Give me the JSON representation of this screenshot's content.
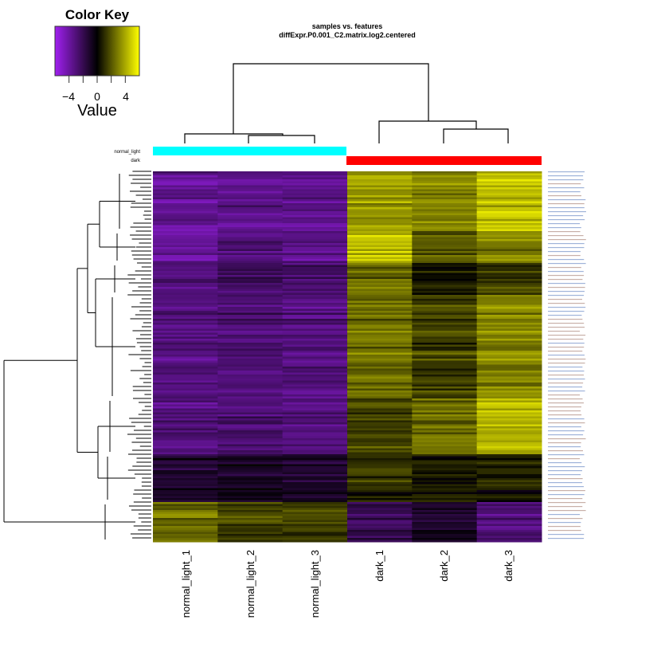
{
  "chart_data": {
    "type": "heatmap",
    "title": "samples vs. features",
    "subtitle": "diffExpr.P0.001_C2.matrix.log2.centered",
    "columns": [
      "normal_light_1",
      "normal_light_2",
      "normal_light_3",
      "dark_1",
      "dark_2",
      "dark_3"
    ],
    "column_groups": [
      "normal_light",
      "normal_light",
      "normal_light",
      "dark",
      "dark",
      "dark"
    ],
    "group_legend": [
      {
        "label": "normal_light",
        "color": "#00ffff"
      },
      {
        "label": "dark",
        "color": "#ff0000"
      }
    ],
    "color_key": {
      "title": "Color Key",
      "xlabel": "Value",
      "range": [
        -6,
        6
      ],
      "ticks": [
        -4,
        -2,
        0,
        2,
        4
      ],
      "tick_labels": [
        "−4",
        "0",
        "4"
      ],
      "colors": {
        "low": "#a020f0",
        "mid": "#000000",
        "high": "#ffff00"
      }
    },
    "row_clusters": [
      {
        "rows": 30,
        "values": [
          -3.5,
          -3.3,
          -3.4,
          3.5,
          3.0,
          4.5
        ]
      },
      {
        "rows": 16,
        "values": [
          -4.0,
          -3.2,
          -3.5,
          4.5,
          2.0,
          3.0
        ]
      },
      {
        "rows": 16,
        "values": [
          -3.0,
          -2.5,
          -2.8,
          2.5,
          0.5,
          1.5
        ]
      },
      {
        "rows": 52,
        "values": [
          -3.0,
          -2.8,
          -3.0,
          2.5,
          1.5,
          3.0
        ]
      },
      {
        "rows": 28,
        "values": [
          -3.0,
          -2.8,
          -3.0,
          1.5,
          2.5,
          4.0
        ]
      },
      {
        "rows": 24,
        "values": [
          -1.0,
          -0.8,
          -1.0,
          1.0,
          0.5,
          0.5
        ]
      },
      {
        "rows": 20,
        "values": [
          2.5,
          1.5,
          1.5,
          -2.0,
          -1.0,
          -3.0
        ]
      }
    ]
  }
}
